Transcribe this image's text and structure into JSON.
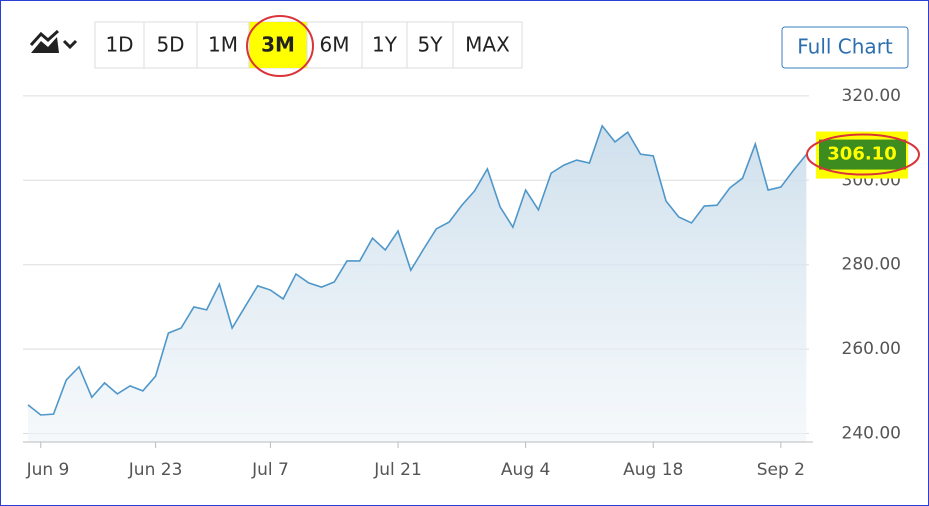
{
  "toolbar": {
    "ranges": [
      "1D",
      "5D",
      "1M",
      "3M",
      "6M",
      "1Y",
      "5Y",
      "MAX"
    ],
    "full_chart": "Full Chart"
  },
  "chart_data": {
    "type": "area",
    "categories": [
      null,
      "Jun 9",
      null,
      null,
      null,
      null,
      null,
      null,
      null,
      null,
      "Jun 23",
      null,
      null,
      null,
      null,
      null,
      null,
      null,
      null,
      "Jul 7",
      null,
      null,
      null,
      null,
      null,
      null,
      null,
      null,
      null,
      "Jul 21",
      null,
      null,
      null,
      null,
      null,
      null,
      null,
      null,
      null,
      "Aug 4",
      null,
      null,
      null,
      null,
      null,
      null,
      null,
      null,
      null,
      "Aug 18",
      null,
      null,
      null,
      null,
      null,
      null,
      null,
      null,
      null,
      "Sep 2",
      null,
      null
    ],
    "values": [
      246.8,
      244.4,
      244.6,
      252.7,
      255.8,
      248.6,
      252.0,
      249.4,
      251.3,
      250.1,
      253.6,
      263.8,
      265.0,
      270.0,
      269.3,
      275.4,
      265.0,
      270.0,
      275.0,
      274.0,
      271.9,
      277.8,
      275.7,
      274.7,
      275.9,
      280.9,
      280.9,
      286.3,
      283.5,
      288.0,
      278.7,
      283.7,
      288.5,
      290.1,
      294.1,
      297.5,
      302.7,
      293.7,
      288.9,
      297.7,
      293.0,
      301.7,
      303.6,
      304.8,
      304.1,
      312.9,
      309.1,
      311.4,
      306.2,
      305.8,
      295.1,
      291.3,
      289.9,
      293.9,
      294.1,
      298.2,
      300.5,
      308.6,
      297.7,
      298.4,
      302.4,
      306.1
    ],
    "color": "#4f97c9",
    "ylim": [
      238,
      324
    ],
    "yticks": [
      {
        "value": 240,
        "label": "240.00"
      },
      {
        "value": 260,
        "label": "260.00"
      },
      {
        "value": 280,
        "label": "280.00"
      },
      {
        "value": 300,
        "label": "300.00"
      },
      {
        "value": 320,
        "label": "320.00"
      }
    ],
    "grid": true,
    "last_price": {
      "value": 306.1,
      "label": "306.10"
    }
  }
}
